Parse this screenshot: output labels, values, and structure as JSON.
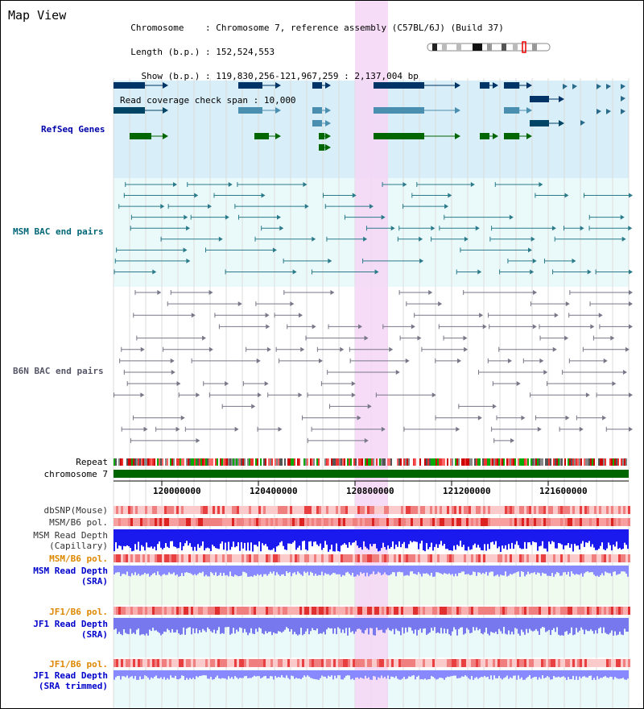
{
  "view_title": "Map View",
  "header": {
    "chromosome_label": "Chromosome",
    "chromosome_value": ": Chromosome 7, reference assembly (C57BL/6J) (Build 37)",
    "length_label": "Length (b.p.)",
    "length_value": ": 152,524,553",
    "show_label": "Show (b.p.)",
    "show_value": ": 119,830,256-121,967,259 : 2,137,004 bp",
    "coverage_label": "Read coverage check span",
    "coverage_value": ": 10,000"
  },
  "tracks": {
    "refseq": "RefSeq Genes",
    "msm_bac": "MSM BAC end pairs",
    "b6n_bac": "B6N BAC end pairs",
    "repeat": "Repeat",
    "chromosome": "chromosome 7",
    "dbsnp": "dbSNP(Mouse)",
    "msm_b6_pol": "MSM/B6 pol.",
    "msm_read_depth_1": "MSM Read Depth",
    "msm_read_depth_capillary": "(Capillary)",
    "msm_b6_pol_2": "MSM/B6 pol.",
    "msm_read_depth_2": "MSM Read Depth",
    "sra_1": "(SRA)",
    "jf1_b6_pol": "JF1/B6 pol.",
    "jf1_read_depth": "JF1 Read Depth",
    "sra_2": "(SRA)",
    "jf1_b6_pol_2": "JF1/B6 pol.",
    "jf1_read_depth_2": "JF1 Read Depth",
    "sra_trimmed": "(SRA trimmed)"
  },
  "axis": {
    "ticks": [
      "120000000",
      "120400000",
      "120800000",
      "121200000",
      "121600000"
    ]
  },
  "colors": {
    "refseq_bg": "#d8eef9",
    "msm_bg": "#eafafa",
    "highlight": "#f6d6f6",
    "chromosome_bar": "#006600",
    "refseq_label": "#0000aa",
    "msm_label": "#006677",
    "b6n_label": "#555566",
    "pol_orange": "#dd8800",
    "depth_blue": "#0000cc"
  }
}
